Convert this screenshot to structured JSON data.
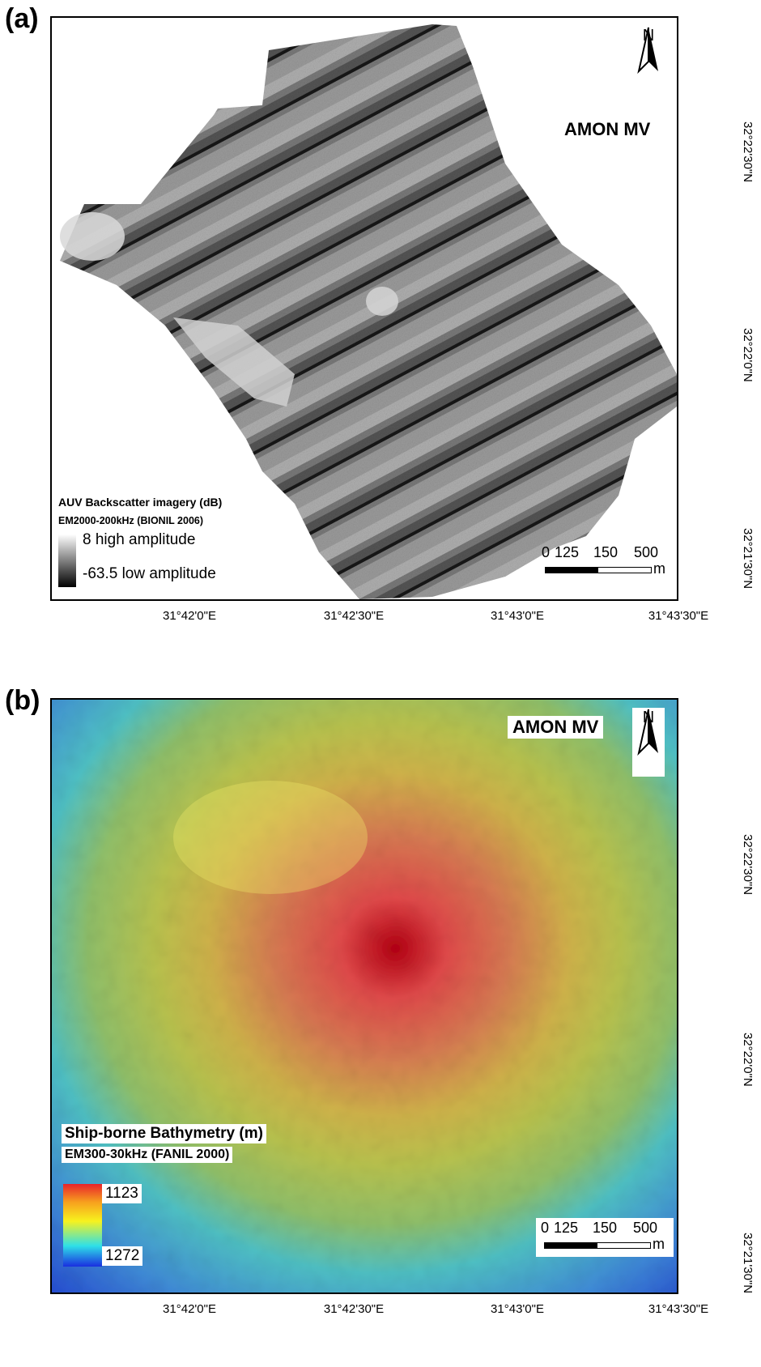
{
  "panel_a": {
    "label": "(a)",
    "site": "AMON MV",
    "north": "N",
    "legend": {
      "title": "AUV Backscatter imagery (dB)",
      "subtitle": "EM2000-200kHz (BIONIL 2006)",
      "high": "8 high amplitude",
      "low": "-63.5 low amplitude",
      "ramp_colors": [
        "#ffffff",
        "#000000"
      ]
    },
    "scalebar": {
      "ticks": [
        "0",
        "125",
        "150",
        "500"
      ],
      "unit": "m"
    },
    "x_ticks": [
      "31°42'0\"E",
      "31°42'30\"E",
      "31°43'0\"E",
      "31°43'30\"E"
    ],
    "y_ticks": [
      "32°22'30\"N",
      "32°22'0\"N",
      "32°21'30\"N"
    ]
  },
  "panel_b": {
    "label": "(b)",
    "site": "AMON MV",
    "north": "N",
    "legend": {
      "title": "Ship-borne Bathymetry (m)",
      "subtitle": "EM300-30kHz (FANIL 2000)",
      "max": "1123",
      "min": "1272",
      "ramp_colors": [
        "#e8232b",
        "#f7f21e",
        "#2ee0e8",
        "#1a2ee0"
      ]
    },
    "scalebar": {
      "ticks": [
        "0",
        "125",
        "150",
        "500"
      ],
      "unit": "m"
    },
    "x_ticks": [
      "31°42'0\"E",
      "31°42'30\"E",
      "31°43'0\"E",
      "31°43'30\"E"
    ],
    "y_ticks": [
      "32°22'30\"N",
      "32°22'0\"N",
      "32°21'30\"N"
    ]
  }
}
